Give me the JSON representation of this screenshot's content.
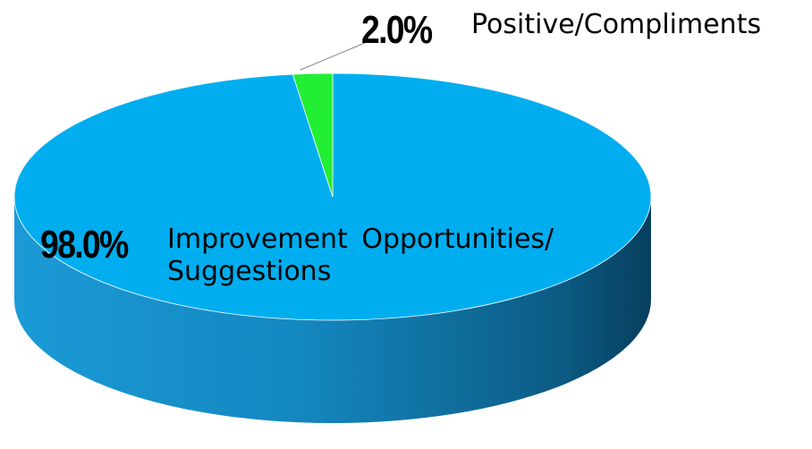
{
  "chart_data": {
    "type": "pie",
    "categories": [
      "Improvement Opportunities/ Suggestions",
      "Positive/Compliments"
    ],
    "values": [
      98.0,
      2.0
    ],
    "value_labels": [
      "98.0%",
      "2.0%"
    ],
    "colors": [
      "#00aeef",
      "#22ee33"
    ]
  }
}
